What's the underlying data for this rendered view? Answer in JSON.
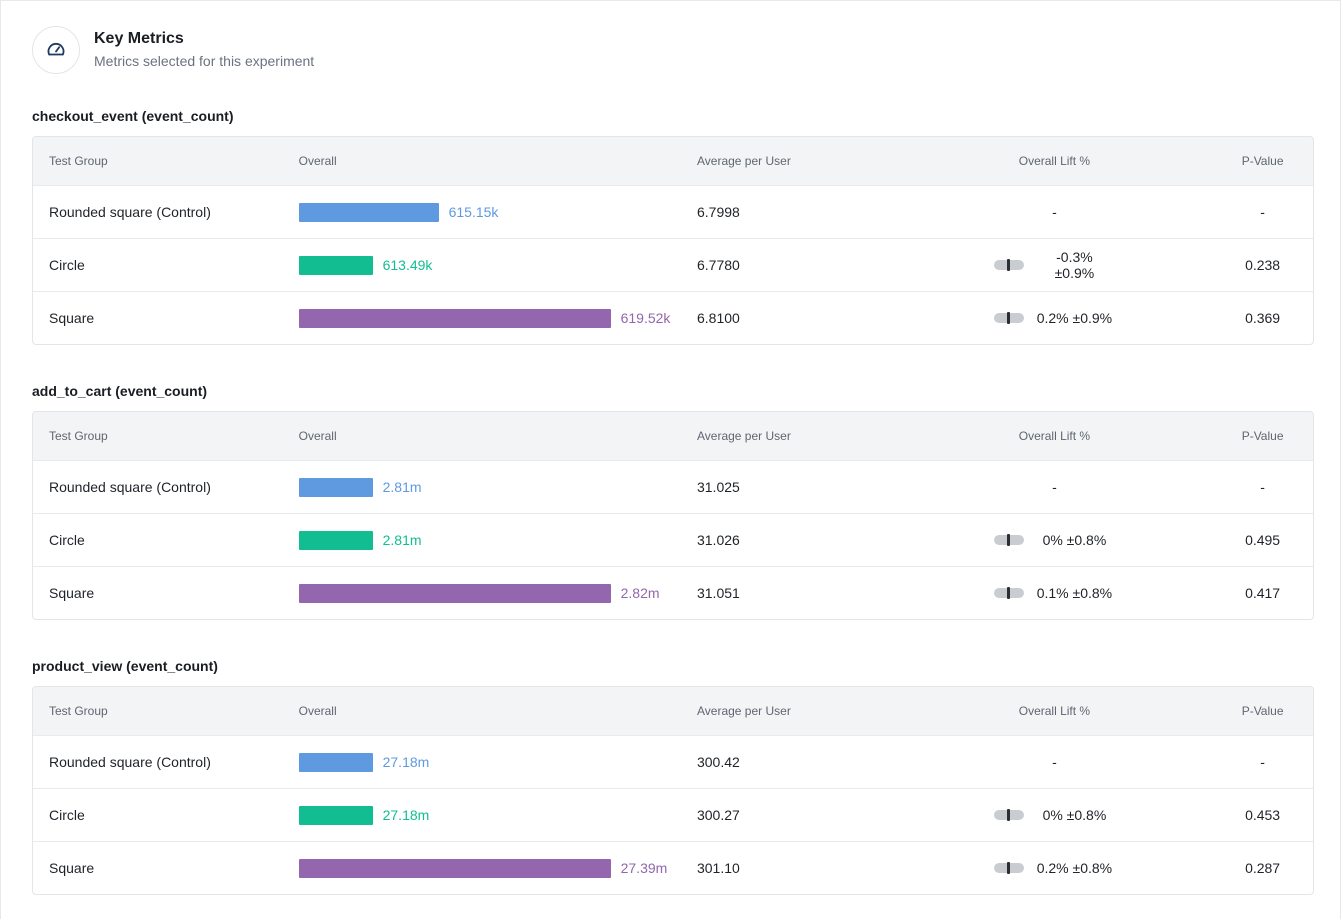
{
  "header": {
    "title": "Key Metrics",
    "subtitle": "Metrics selected for this experiment",
    "icon": "gauge-icon"
  },
  "columns": {
    "group": "Test Group",
    "overall": "Overall",
    "avg": "Average per User",
    "lift": "Overall Lift %",
    "pvalue": "P-Value"
  },
  "colors": {
    "control": "#5f9ae0",
    "circle": "#12bd92",
    "square": "#9366ad"
  },
  "sections": [
    {
      "title": "checkout_event (event_count)",
      "rows": [
        {
          "group": "Rounded square (Control)",
          "variant": "control",
          "overall_label": "615.15k",
          "overall_value": 615150,
          "avg": "6.7998",
          "lift": "-",
          "pvalue": "-"
        },
        {
          "group": "Circle",
          "variant": "circle",
          "overall_label": "613.49k",
          "overall_value": 613490,
          "avg": "6.7780",
          "lift": "-0.3% ±0.9%",
          "pvalue": "0.238"
        },
        {
          "group": "Square",
          "variant": "square",
          "overall_label": "619.52k",
          "overall_value": 619520,
          "avg": "6.8100",
          "lift": "0.2% ±0.9%",
          "pvalue": "0.369"
        }
      ]
    },
    {
      "title": "add_to_cart (event_count)",
      "rows": [
        {
          "group": "Rounded square (Control)",
          "variant": "control",
          "overall_label": "2.81m",
          "overall_value": 2810000,
          "avg": "31.025",
          "lift": "-",
          "pvalue": "-"
        },
        {
          "group": "Circle",
          "variant": "circle",
          "overall_label": "2.81m",
          "overall_value": 2810000,
          "avg": "31.026",
          "lift": "0% ±0.8%",
          "pvalue": "0.495"
        },
        {
          "group": "Square",
          "variant": "square",
          "overall_label": "2.82m",
          "overall_value": 2820000,
          "avg": "31.051",
          "lift": "0.1% ±0.8%",
          "pvalue": "0.417"
        }
      ]
    },
    {
      "title": "product_view (event_count)",
      "rows": [
        {
          "group": "Rounded square (Control)",
          "variant": "control",
          "overall_label": "27.18m",
          "overall_value": 27180000,
          "avg": "300.42",
          "lift": "-",
          "pvalue": "-"
        },
        {
          "group": "Circle",
          "variant": "circle",
          "overall_label": "27.18m",
          "overall_value": 27180000,
          "avg": "300.27",
          "lift": "0% ±0.8%",
          "pvalue": "0.453"
        },
        {
          "group": "Square",
          "variant": "square",
          "overall_label": "27.39m",
          "overall_value": 27390000,
          "avg": "301.10",
          "lift": "0.2% ±0.8%",
          "pvalue": "0.287"
        }
      ]
    }
  ]
}
